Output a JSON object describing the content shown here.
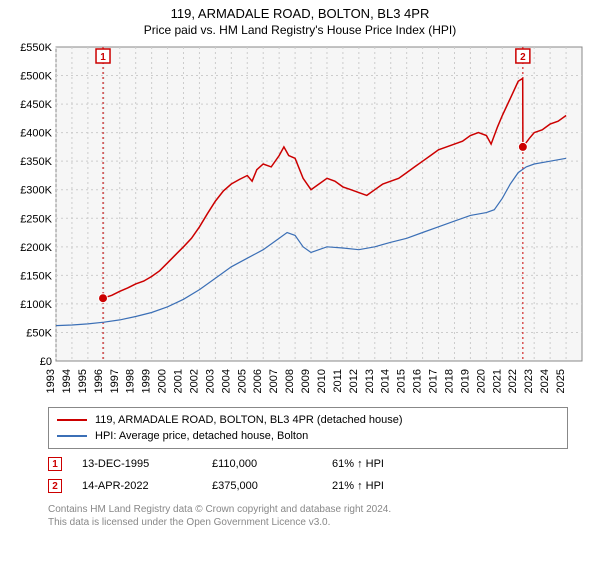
{
  "title": "119, ARMADALE ROAD, BOLTON, BL3 4PR",
  "subtitle": "Price paid vs. HM Land Registry's House Price Index (HPI)",
  "chart": {
    "type": "line",
    "background_color": "#ffffff",
    "plot_bg_color": "#f6f6f6",
    "border_color": "#888888",
    "grid_color": "#cccccc",
    "grid_dash": "2,3",
    "x_years": [
      1993,
      1994,
      1995,
      1996,
      1997,
      1998,
      1999,
      2000,
      2001,
      2002,
      2003,
      2004,
      2005,
      2006,
      2007,
      2008,
      2009,
      2010,
      2011,
      2012,
      2013,
      2014,
      2015,
      2016,
      2017,
      2018,
      2019,
      2020,
      2021,
      2022,
      2023,
      2024,
      2025
    ],
    "x_range": [
      1993,
      2026
    ],
    "y_range": [
      0,
      550000
    ],
    "y_ticks": [
      0,
      50000,
      100000,
      150000,
      200000,
      250000,
      300000,
      350000,
      400000,
      450000,
      500000,
      550000
    ],
    "y_tick_labels": [
      "£0",
      "£50K",
      "£100K",
      "£150K",
      "£200K",
      "£250K",
      "£300K",
      "£350K",
      "£400K",
      "£450K",
      "£500K",
      "£550K"
    ],
    "y_tick_fontsize": 11,
    "x_tick_fontsize": 11,
    "series": [
      {
        "name": "property",
        "label": "119, ARMADALE ROAD, BOLTON, BL3 4PR (detached house)",
        "color": "#cc0000",
        "line_width": 1.5,
        "data": [
          [
            1995.95,
            110000
          ],
          [
            1996.5,
            115000
          ],
          [
            1997.0,
            122000
          ],
          [
            1997.5,
            128000
          ],
          [
            1998.0,
            135000
          ],
          [
            1998.5,
            140000
          ],
          [
            1999.0,
            148000
          ],
          [
            1999.5,
            158000
          ],
          [
            2000.0,
            172000
          ],
          [
            2000.5,
            186000
          ],
          [
            2001.0,
            200000
          ],
          [
            2001.5,
            215000
          ],
          [
            2002.0,
            235000
          ],
          [
            2002.5,
            258000
          ],
          [
            2003.0,
            280000
          ],
          [
            2003.5,
            298000
          ],
          [
            2004.0,
            310000
          ],
          [
            2004.5,
            318000
          ],
          [
            2005.0,
            325000
          ],
          [
            2005.3,
            315000
          ],
          [
            2005.6,
            335000
          ],
          [
            2006.0,
            345000
          ],
          [
            2006.5,
            340000
          ],
          [
            2007.0,
            360000
          ],
          [
            2007.3,
            375000
          ],
          [
            2007.6,
            360000
          ],
          [
            2008.0,
            355000
          ],
          [
            2008.5,
            320000
          ],
          [
            2009.0,
            300000
          ],
          [
            2009.5,
            310000
          ],
          [
            2010.0,
            320000
          ],
          [
            2010.5,
            315000
          ],
          [
            2011.0,
            305000
          ],
          [
            2011.5,
            300000
          ],
          [
            2012.0,
            295000
          ],
          [
            2012.5,
            290000
          ],
          [
            2013.0,
            300000
          ],
          [
            2013.5,
            310000
          ],
          [
            2014.0,
            315000
          ],
          [
            2014.5,
            320000
          ],
          [
            2015.0,
            330000
          ],
          [
            2015.5,
            340000
          ],
          [
            2016.0,
            350000
          ],
          [
            2016.5,
            360000
          ],
          [
            2017.0,
            370000
          ],
          [
            2017.5,
            375000
          ],
          [
            2018.0,
            380000
          ],
          [
            2018.5,
            385000
          ],
          [
            2019.0,
            395000
          ],
          [
            2019.5,
            400000
          ],
          [
            2020.0,
            395000
          ],
          [
            2020.3,
            380000
          ],
          [
            2020.7,
            410000
          ],
          [
            2021.0,
            430000
          ],
          [
            2021.5,
            460000
          ],
          [
            2022.0,
            490000
          ],
          [
            2022.28,
            495000
          ],
          [
            2022.29,
            375000
          ],
          [
            2022.7,
            390000
          ],
          [
            2023.0,
            400000
          ],
          [
            2023.5,
            405000
          ],
          [
            2024.0,
            415000
          ],
          [
            2024.5,
            420000
          ],
          [
            2025.0,
            430000
          ]
        ]
      },
      {
        "name": "hpi",
        "label": "HPI: Average price, detached house, Bolton",
        "color": "#3b6fb6",
        "line_width": 1.2,
        "data": [
          [
            1993.0,
            62000
          ],
          [
            1994.0,
            63000
          ],
          [
            1995.0,
            65000
          ],
          [
            1996.0,
            68000
          ],
          [
            1997.0,
            72000
          ],
          [
            1998.0,
            78000
          ],
          [
            1999.0,
            85000
          ],
          [
            2000.0,
            95000
          ],
          [
            2001.0,
            108000
          ],
          [
            2002.0,
            125000
          ],
          [
            2003.0,
            145000
          ],
          [
            2004.0,
            165000
          ],
          [
            2005.0,
            180000
          ],
          [
            2006.0,
            195000
          ],
          [
            2007.0,
            215000
          ],
          [
            2007.5,
            225000
          ],
          [
            2008.0,
            220000
          ],
          [
            2008.5,
            200000
          ],
          [
            2009.0,
            190000
          ],
          [
            2010.0,
            200000
          ],
          [
            2011.0,
            198000
          ],
          [
            2012.0,
            195000
          ],
          [
            2013.0,
            200000
          ],
          [
            2014.0,
            208000
          ],
          [
            2015.0,
            215000
          ],
          [
            2016.0,
            225000
          ],
          [
            2017.0,
            235000
          ],
          [
            2018.0,
            245000
          ],
          [
            2019.0,
            255000
          ],
          [
            2020.0,
            260000
          ],
          [
            2020.5,
            265000
          ],
          [
            2021.0,
            285000
          ],
          [
            2021.5,
            310000
          ],
          [
            2022.0,
            330000
          ],
          [
            2022.5,
            340000
          ],
          [
            2023.0,
            345000
          ],
          [
            2024.0,
            350000
          ],
          [
            2025.0,
            355000
          ]
        ]
      }
    ],
    "markers": [
      {
        "n": "1",
        "x": 1995.95,
        "y": 110000,
        "color": "#cc0000",
        "vline_dash": "2,3"
      },
      {
        "n": "2",
        "x": 2022.29,
        "y": 375000,
        "color": "#cc0000",
        "vline_dash": "2,3"
      }
    ],
    "marker_box_size": 14,
    "marker_dot_radius": 4.5
  },
  "legend": {
    "border_color": "#888888",
    "items": [
      {
        "color": "#cc0000",
        "label": "119, ARMADALE ROAD, BOLTON, BL3 4PR (detached house)"
      },
      {
        "color": "#3b6fb6",
        "label": "HPI: Average price, detached house, Bolton"
      }
    ]
  },
  "transactions": [
    {
      "n": "1",
      "color": "#cc0000",
      "date": "13-DEC-1995",
      "price": "£110,000",
      "hpi_delta": "61% ↑ HPI"
    },
    {
      "n": "2",
      "color": "#cc0000",
      "date": "14-APR-2022",
      "price": "£375,000",
      "hpi_delta": "21% ↑ HPI"
    }
  ],
  "footnote_line1": "Contains HM Land Registry data © Crown copyright and database right 2024.",
  "footnote_line2": "This data is licensed under the Open Government Licence v3.0.",
  "colors": {
    "text": "#000000",
    "footnote": "#888888"
  }
}
